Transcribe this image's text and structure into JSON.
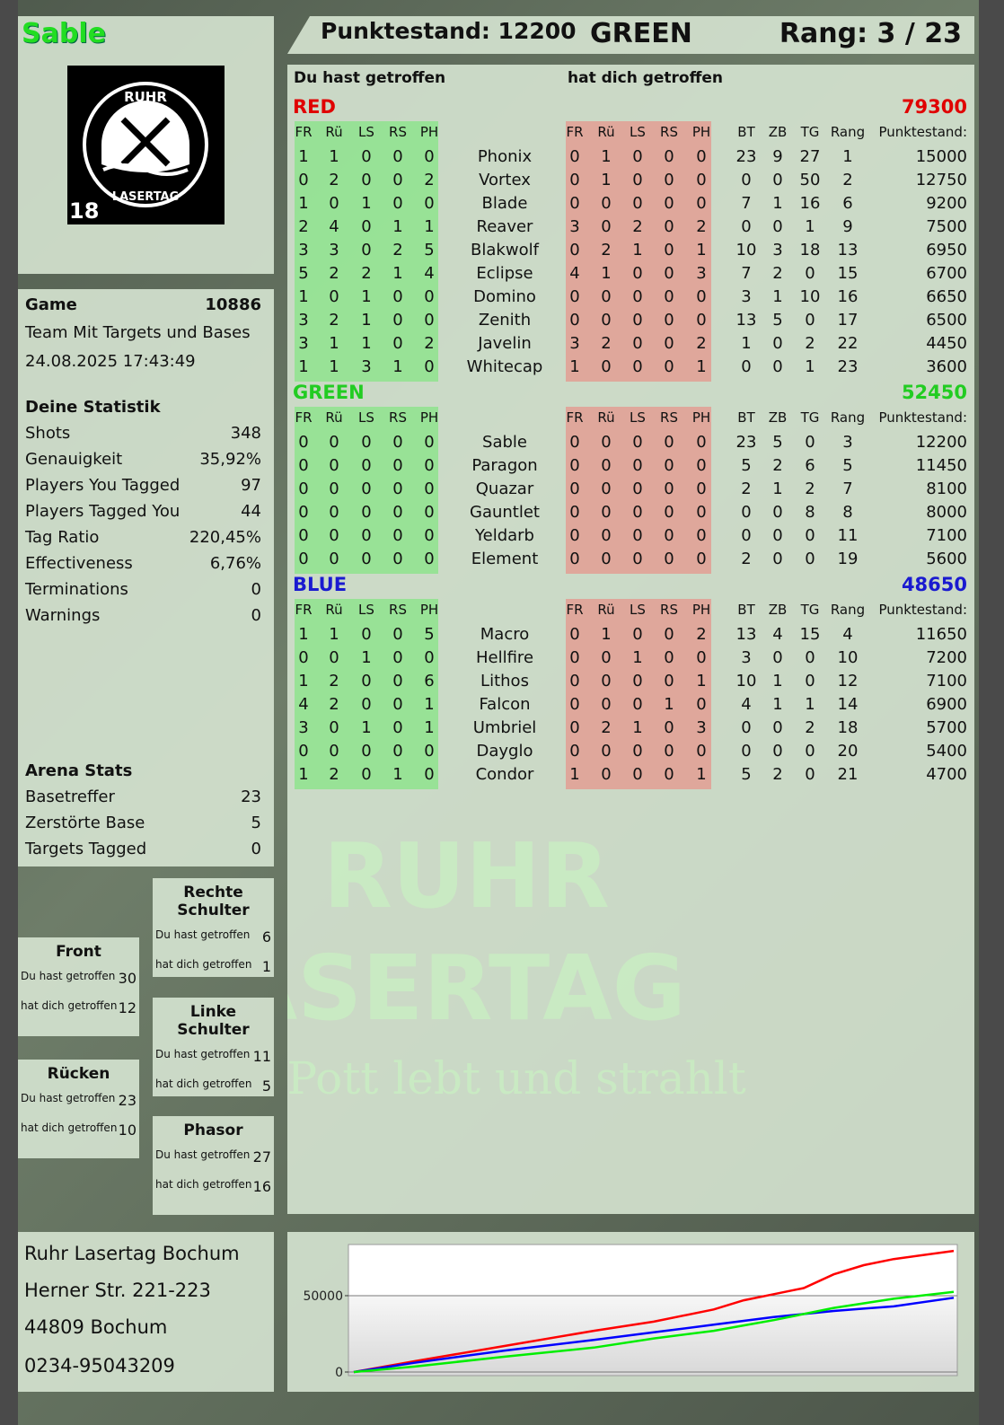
{
  "player": {
    "name": "Sable",
    "name_color": "#22dd22"
  },
  "logo": {
    "top": "RUHR",
    "bottom": "LASERTAG",
    "age": "18"
  },
  "header": {
    "score": "Punktestand: 12200",
    "team": "GREEN",
    "rank": "Rang: 3 / 23"
  },
  "game": {
    "label": "Game",
    "number": "10886",
    "mode": "Team Mit Targets und Bases",
    "datetime": "24.08.2025 17:43:49"
  },
  "stats": {
    "title": "Deine Statistik",
    "items": [
      {
        "label": "Shots",
        "value": "348"
      },
      {
        "label": "Genauigkeit",
        "value": "35,92%"
      },
      {
        "label": "Players You Tagged",
        "value": "97"
      },
      {
        "label": "Players Tagged You",
        "value": "44"
      },
      {
        "label": "Tag Ratio",
        "value": "220,45%"
      },
      {
        "label": "Effectiveness",
        "value": "6,76%"
      },
      {
        "label": "Terminations",
        "value": "0"
      },
      {
        "label": "Warnings",
        "value": "0"
      }
    ]
  },
  "arena": {
    "title": "Arena Stats",
    "items": [
      {
        "label": "Basetreffer",
        "value": "23"
      },
      {
        "label": "Zerstörte Base",
        "value": "5"
      },
      {
        "label": "Targets Tagged",
        "value": "0"
      }
    ]
  },
  "body_parts": [
    {
      "title": "Rechte Schulter",
      "hit_label": "Du hast getroffen",
      "hit": "6",
      "got_label": "hat dich getroffen",
      "got": "1"
    },
    {
      "title": "Front",
      "hit_label": "Du hast getroffen",
      "hit": "30",
      "got_label": "hat dich getroffen",
      "got": "12"
    },
    {
      "title": "Linke Schulter",
      "hit_label": "Du hast getroffen",
      "hit": "11",
      "got_label": "hat dich getroffen",
      "got": "5"
    },
    {
      "title": "Rücken",
      "hit_label": "Du hast getroffen",
      "hit": "23",
      "got_label": "hat dich getroffen",
      "got": "10"
    },
    {
      "title": "Phasor",
      "hit_label": "Du hast getroffen",
      "hit": "27",
      "got_label": "hat dich getroffen",
      "got": "16"
    }
  ],
  "main": {
    "you_hit_label": "Du hast getroffen",
    "hit_you_label": "hat dich getroffen",
    "columns": [
      "FR",
      "Rü",
      "LS",
      "RS",
      "PH",
      "FR",
      "Rü",
      "LS",
      "RS",
      "PH",
      "BT",
      "ZB",
      "TG",
      "Rang",
      "Punktestand:"
    ],
    "teams": [
      {
        "name": "RED",
        "score": "79300",
        "color": "#e00000",
        "players": [
          [
            "1",
            "1",
            "0",
            "0",
            "0",
            "Phonix",
            "0",
            "1",
            "0",
            "0",
            "0",
            "23",
            "9",
            "27",
            "1",
            "15000"
          ],
          [
            "0",
            "2",
            "0",
            "0",
            "2",
            "Vortex",
            "0",
            "1",
            "0",
            "0",
            "0",
            "0",
            "0",
            "50",
            "2",
            "12750"
          ],
          [
            "1",
            "0",
            "1",
            "0",
            "0",
            "Blade",
            "0",
            "0",
            "0",
            "0",
            "0",
            "7",
            "1",
            "16",
            "6",
            "9200"
          ],
          [
            "2",
            "4",
            "0",
            "1",
            "1",
            "Reaver",
            "3",
            "0",
            "2",
            "0",
            "2",
            "0",
            "0",
            "1",
            "9",
            "7500"
          ],
          [
            "3",
            "3",
            "0",
            "2",
            "5",
            "Blakwolf",
            "0",
            "2",
            "1",
            "0",
            "1",
            "10",
            "3",
            "18",
            "13",
            "6950"
          ],
          [
            "5",
            "2",
            "2",
            "1",
            "4",
            "Eclipse",
            "4",
            "1",
            "0",
            "0",
            "3",
            "7",
            "2",
            "0",
            "15",
            "6700"
          ],
          [
            "1",
            "0",
            "1",
            "0",
            "0",
            "Domino",
            "0",
            "0",
            "0",
            "0",
            "0",
            "3",
            "1",
            "10",
            "16",
            "6650"
          ],
          [
            "3",
            "2",
            "1",
            "0",
            "0",
            "Zenith",
            "0",
            "0",
            "0",
            "0",
            "0",
            "13",
            "5",
            "0",
            "17",
            "6500"
          ],
          [
            "3",
            "1",
            "1",
            "0",
            "2",
            "Javelin",
            "3",
            "2",
            "0",
            "0",
            "2",
            "1",
            "0",
            "2",
            "22",
            "4450"
          ],
          [
            "1",
            "1",
            "3",
            "1",
            "0",
            "Whitecap",
            "1",
            "0",
            "0",
            "0",
            "1",
            "0",
            "0",
            "1",
            "23",
            "3600"
          ]
        ]
      },
      {
        "name": "GREEN",
        "score": "52450",
        "color": "#22cc22",
        "players": [
          [
            "0",
            "0",
            "0",
            "0",
            "0",
            "Sable",
            "0",
            "0",
            "0",
            "0",
            "0",
            "23",
            "5",
            "0",
            "3",
            "12200"
          ],
          [
            "0",
            "0",
            "0",
            "0",
            "0",
            "Paragon",
            "0",
            "0",
            "0",
            "0",
            "0",
            "5",
            "2",
            "6",
            "5",
            "11450"
          ],
          [
            "0",
            "0",
            "0",
            "0",
            "0",
            "Quazar",
            "0",
            "0",
            "0",
            "0",
            "0",
            "2",
            "1",
            "2",
            "7",
            "8100"
          ],
          [
            "0",
            "0",
            "0",
            "0",
            "0",
            "Gauntlet",
            "0",
            "0",
            "0",
            "0",
            "0",
            "0",
            "0",
            "8",
            "8",
            "8000"
          ],
          [
            "0",
            "0",
            "0",
            "0",
            "0",
            "Yeldarb",
            "0",
            "0",
            "0",
            "0",
            "0",
            "0",
            "0",
            "0",
            "11",
            "7100"
          ],
          [
            "0",
            "0",
            "0",
            "0",
            "0",
            "Element",
            "0",
            "0",
            "0",
            "0",
            "0",
            "2",
            "0",
            "0",
            "19",
            "5600"
          ]
        ]
      },
      {
        "name": "BLUE",
        "score": "48650",
        "color": "#1a1ad0",
        "players": [
          [
            "1",
            "1",
            "0",
            "0",
            "5",
            "Macro",
            "0",
            "1",
            "0",
            "0",
            "2",
            "13",
            "4",
            "15",
            "4",
            "11650"
          ],
          [
            "0",
            "0",
            "1",
            "0",
            "0",
            "Hellfire",
            "0",
            "0",
            "1",
            "0",
            "0",
            "3",
            "0",
            "0",
            "10",
            "7200"
          ],
          [
            "1",
            "2",
            "0",
            "0",
            "6",
            "Lithos",
            "0",
            "0",
            "0",
            "0",
            "1",
            "10",
            "1",
            "0",
            "12",
            "7100"
          ],
          [
            "4",
            "2",
            "0",
            "0",
            "1",
            "Falcon",
            "0",
            "0",
            "0",
            "1",
            "0",
            "4",
            "1",
            "1",
            "14",
            "6900"
          ],
          [
            "3",
            "0",
            "1",
            "0",
            "1",
            "Umbriel",
            "0",
            "2",
            "1",
            "0",
            "3",
            "0",
            "0",
            "2",
            "18",
            "5700"
          ],
          [
            "0",
            "0",
            "0",
            "0",
            "0",
            "Dayglo",
            "0",
            "0",
            "0",
            "0",
            "0",
            "0",
            "0",
            "0",
            "20",
            "5400"
          ],
          [
            "1",
            "2",
            "0",
            "1",
            "0",
            "Condor",
            "1",
            "0",
            "0",
            "0",
            "1",
            "5",
            "2",
            "0",
            "21",
            "4700"
          ]
        ]
      }
    ]
  },
  "watermark": {
    "line1": "RUHR",
    "line2": "LASERTAG",
    "slogan": "Der Pott lebt und strahlt"
  },
  "footer": {
    "lines": [
      "Ruhr Lasertag Bochum",
      "Herner Str. 221-223",
      "44809 Bochum",
      "0234-95043209"
    ]
  },
  "chart_data": {
    "type": "line",
    "ylim": [
      0,
      83500
    ],
    "yticks": [
      "0",
      "50000"
    ],
    "grid": "horizontal at 50000",
    "legend": "none",
    "x": [
      0,
      0.1,
      0.25,
      0.4,
      0.5,
      0.6,
      0.65,
      0.7,
      0.75,
      0.8,
      0.85,
      0.9,
      1.0
    ],
    "series": [
      {
        "color": "#ff0000",
        "values": [
          0,
          7000,
          17000,
          27000,
          33000,
          41000,
          47000,
          51000,
          55000,
          64000,
          70000,
          74000,
          79300
        ]
      },
      {
        "color": "#0000ff",
        "values": [
          0,
          6000,
          14000,
          21000,
          26000,
          31000,
          33500,
          36000,
          38000,
          40000,
          41500,
          43000,
          48650
        ]
      },
      {
        "color": "#00ee00",
        "values": [
          0,
          3500,
          10000,
          16000,
          22000,
          27000,
          30500,
          34000,
          38000,
          42000,
          45000,
          48000,
          52450
        ]
      }
    ]
  }
}
